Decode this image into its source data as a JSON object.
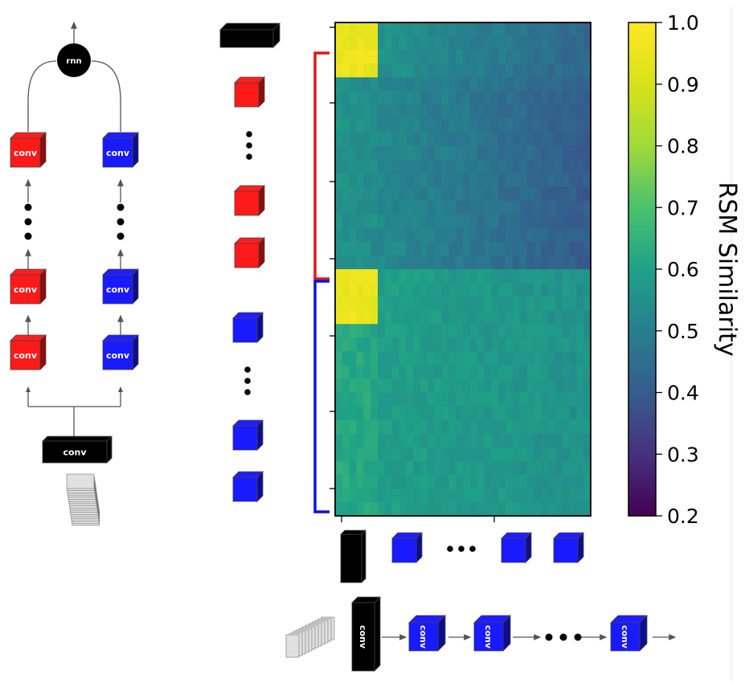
{
  "labels": {
    "conv": "conv",
    "rnn": "rnn"
  },
  "colors": {
    "red_stream": "#ff1a1a",
    "blue_stream": "#1a1aff",
    "base_layer": "#000000",
    "red_bracket": "#e01818",
    "blue_bracket": "#1010d8"
  },
  "colorbar": {
    "title": "RSM Similarity",
    "ticks": [
      "1.0",
      "0.9",
      "0.8",
      "0.7",
      "0.6",
      "0.5",
      "0.4",
      "0.3",
      "0.2"
    ],
    "range": [
      0.2,
      1.0
    ],
    "colormap": "viridis"
  },
  "chart_data": {
    "type": "heatmap",
    "title": "",
    "xlabel": "",
    "ylabel": "",
    "value_label": "RSM Similarity",
    "vmin": 0.2,
    "vmax": 1.0,
    "grid_size": 36,
    "row_groups": [
      {
        "name": "",
        "layers": "base + red stream",
        "rows": [
          0,
          17
        ]
      },
      {
        "name": "",
        "layers": "blue stream",
        "rows": [
          18,
          35
        ]
      }
    ],
    "block_means": {
      "base_with_base": 0.95,
      "red_with_red": 0.56,
      "red_with_blue": 0.45,
      "blue_with_base_cols": 0.62,
      "blue_with_blue": 0.6
    }
  }
}
